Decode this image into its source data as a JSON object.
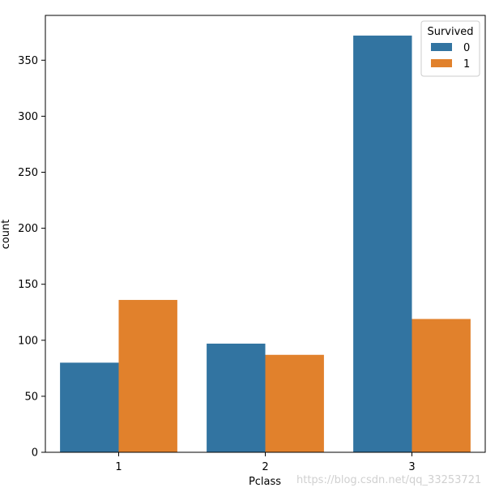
{
  "chart_data": {
    "type": "bar",
    "categories": [
      "1",
      "2",
      "3"
    ],
    "xlabel": "Pclass",
    "ylabel": "count",
    "ylim": [
      0,
      390
    ],
    "yticks": [
      0,
      50,
      100,
      150,
      200,
      250,
      300,
      350
    ],
    "legend": {
      "title": "Survived",
      "placement": "top-right"
    },
    "series": [
      {
        "name": "0",
        "color": "#3274a1",
        "values": [
          80,
          97,
          372
        ]
      },
      {
        "name": "1",
        "color": "#e1812c",
        "values": [
          136,
          87,
          119
        ]
      }
    ],
    "grid": false
  },
  "watermark": "https://blog.csdn.net/qq_33253721"
}
